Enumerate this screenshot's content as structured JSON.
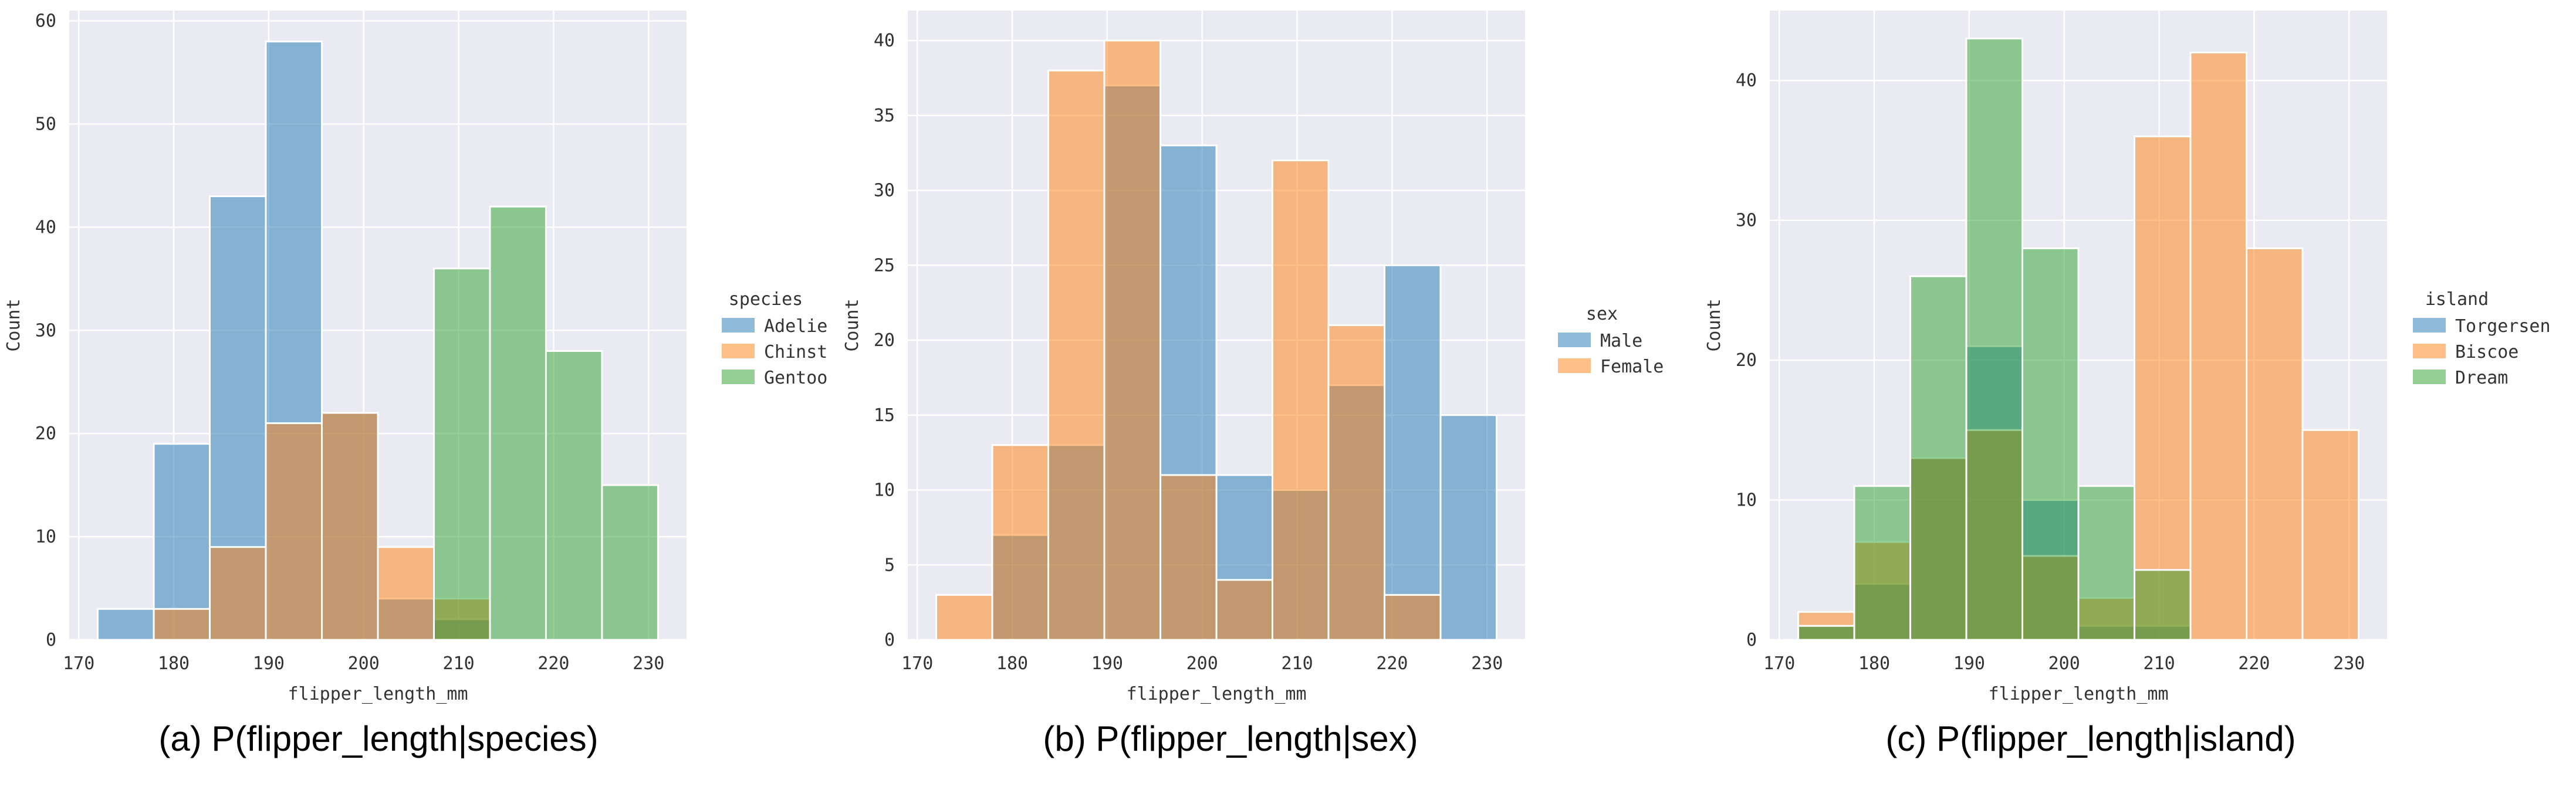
{
  "chart_data": [
    {
      "type": "bar",
      "caption": "(a) P(flipper_length|species)",
      "xlabel": "flipper_length_mm",
      "ylabel": "Count",
      "xlim": [
        169,
        234
      ],
      "ylim": [
        0,
        61
      ],
      "xticks": [
        170,
        180,
        190,
        200,
        210,
        220,
        230
      ],
      "yticks": [
        0,
        10,
        20,
        30,
        40,
        50,
        60
      ],
      "grid": true,
      "legend_title": "species",
      "legend_placement": "right",
      "bin_edges": [
        172,
        177.9,
        183.8,
        189.7,
        195.6,
        201.5,
        207.4,
        213.3,
        219.2,
        225.1,
        231
      ],
      "series": [
        {
          "name": "Adelie",
          "color": "#1f77b4",
          "values": [
            3,
            19,
            43,
            58,
            22,
            4,
            2,
            0,
            0,
            0
          ]
        },
        {
          "name": "Chinstrap",
          "color": "#ff7f0e",
          "values": [
            0,
            3,
            9,
            21,
            22,
            9,
            4,
            0,
            0,
            0
          ]
        },
        {
          "name": "Gentoo",
          "color": "#2ca02c",
          "values": [
            0,
            0,
            0,
            0,
            0,
            0,
            36,
            42,
            28,
            15
          ]
        }
      ],
      "legend_labels": [
        "Adelie",
        "Chinst",
        "Gentoo"
      ]
    },
    {
      "type": "bar",
      "caption": "(b) P(flipper_length|sex)",
      "xlabel": "flipper_length_mm",
      "ylabel": "Count",
      "xlim": [
        169,
        234
      ],
      "ylim": [
        0,
        42
      ],
      "xticks": [
        170,
        180,
        190,
        200,
        210,
        220,
        230
      ],
      "yticks": [
        0,
        5,
        10,
        15,
        20,
        25,
        30,
        35,
        40
      ],
      "grid": true,
      "legend_title": "sex",
      "legend_placement": "right",
      "bin_edges": [
        172,
        177.9,
        183.8,
        189.7,
        195.6,
        201.5,
        207.4,
        213.3,
        219.2,
        225.1,
        231
      ],
      "series": [
        {
          "name": "Male",
          "color": "#1f77b4",
          "values": [
            0,
            7,
            13,
            37,
            33,
            11,
            10,
            17,
            25,
            15
          ]
        },
        {
          "name": "Female",
          "color": "#ff7f0e",
          "values": [
            3,
            13,
            38,
            40,
            11,
            4,
            32,
            21,
            3,
            0
          ]
        }
      ],
      "legend_labels": [
        "Male",
        "Female"
      ]
    },
    {
      "type": "bar",
      "caption": "(c) P(flipper_length|island)",
      "xlabel": "flipper_length_mm",
      "ylabel": "Count",
      "xlim": [
        169,
        234
      ],
      "ylim": [
        0,
        45
      ],
      "xticks": [
        170,
        180,
        190,
        200,
        210,
        220,
        230
      ],
      "yticks": [
        0,
        10,
        20,
        30,
        40
      ],
      "grid": true,
      "legend_title": "island",
      "legend_placement": "right",
      "bin_edges": [
        172,
        177.9,
        183.8,
        189.7,
        195.6,
        201.5,
        207.4,
        213.3,
        219.2,
        225.1,
        231
      ],
      "series": [
        {
          "name": "Torgersen",
          "color": "#1f77b4",
          "values": [
            1,
            4,
            13,
            21,
            10,
            1,
            1,
            0,
            0,
            0
          ]
        },
        {
          "name": "Biscoe",
          "color": "#ff7f0e",
          "values": [
            2,
            7,
            13,
            15,
            6,
            3,
            36,
            42,
            28,
            15
          ]
        },
        {
          "name": "Dream",
          "color": "#2ca02c",
          "values": [
            1,
            11,
            26,
            43,
            28,
            11,
            5,
            0,
            0,
            0
          ]
        }
      ],
      "legend_labels": [
        "Torgersen",
        "Biscoe",
        "Dream"
      ]
    }
  ]
}
